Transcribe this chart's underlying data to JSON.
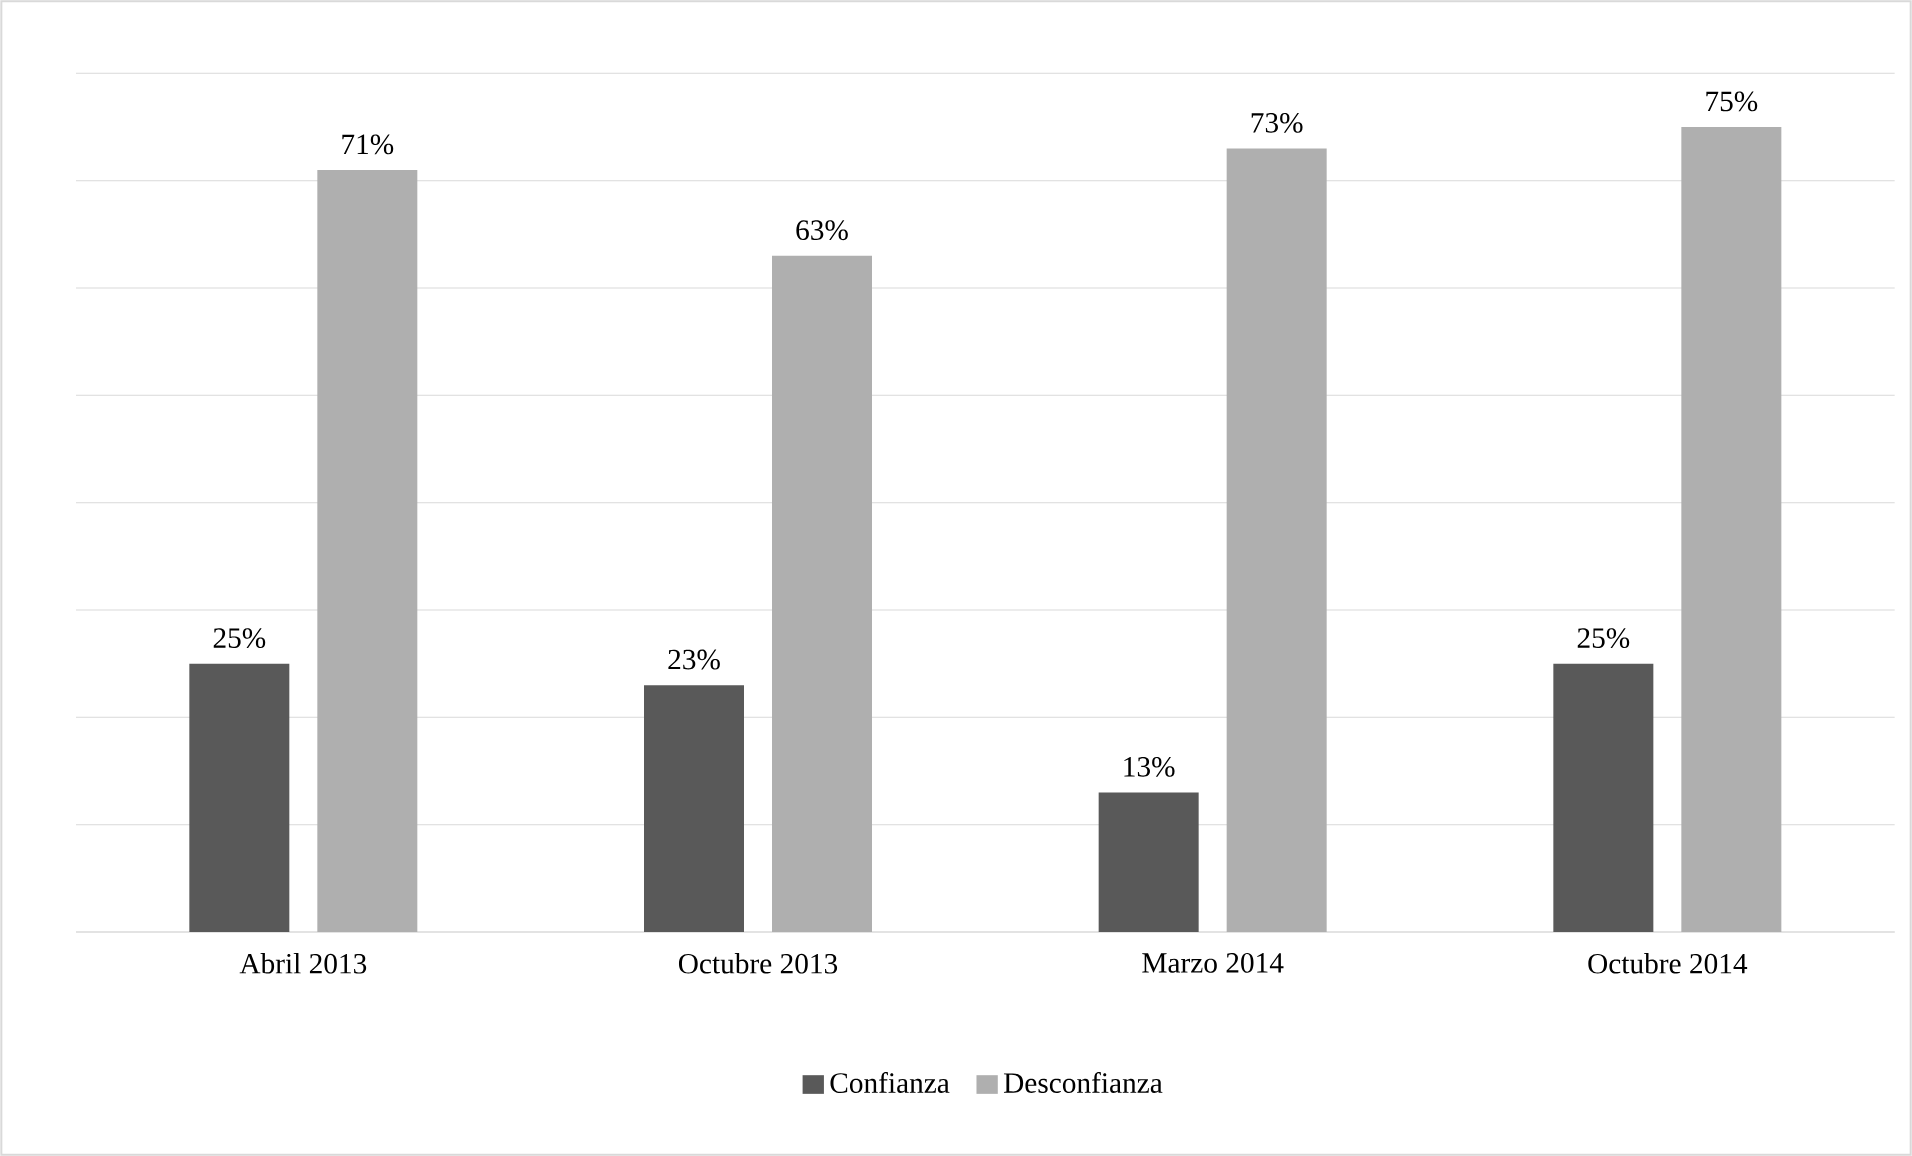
{
  "chart_data": {
    "type": "bar",
    "categories": [
      "Abril 2013",
      "Octubre 2013",
      "Marzo 2014",
      "Octubre 2014"
    ],
    "series": [
      {
        "name": "Confianza",
        "color": "#595959",
        "values": [
          25,
          23,
          13,
          25
        ],
        "value_labels": [
          "25%",
          "23%",
          "13%",
          "25%"
        ]
      },
      {
        "name": "Desconfianza",
        "color": "#afafaf",
        "values": [
          71,
          63,
          73,
          75
        ],
        "value_labels": [
          "71%",
          "63%",
          "73%",
          "75%"
        ]
      }
    ],
    "ylim": [
      0,
      80
    ],
    "grid": "y",
    "legend": "bottom",
    "tick_labels": "x"
  }
}
